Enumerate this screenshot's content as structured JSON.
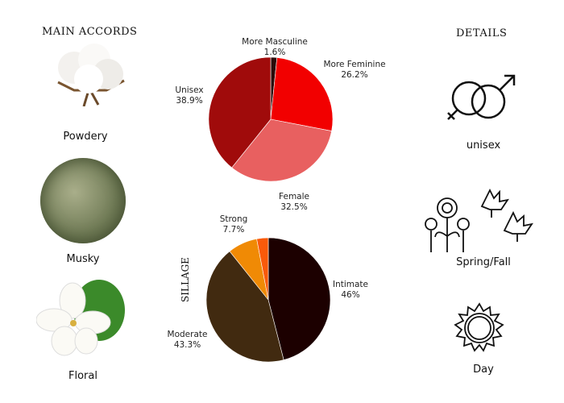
{
  "main_accords": {
    "title": "MAIN ACCORDS",
    "items": [
      {
        "label": "Powdery"
      },
      {
        "label": "Musky"
      },
      {
        "label": "Floral"
      }
    ]
  },
  "details": {
    "title": "DETAILS",
    "gender": "unisex",
    "season": "Spring/Fall",
    "time": "Day"
  },
  "sillage_title": "SILLAGE",
  "chart_data": [
    {
      "type": "pie",
      "start": "top",
      "direction": "clockwise",
      "slices": [
        {
          "label": "More Masculine",
          "value": 1.6,
          "display": "1.6%",
          "color": "#2a0a08"
        },
        {
          "label": "More Feminine",
          "value": 26.2,
          "display": "26.2%",
          "color": "#f20000"
        },
        {
          "label": "Female",
          "value": 32.5,
          "display": "32.5%",
          "color": "#e86060"
        },
        {
          "label": "Unisex",
          "value": 38.9,
          "display": "38.9%",
          "color": "#a00b0b"
        }
      ]
    },
    {
      "type": "pie",
      "start": "top",
      "direction": "clockwise",
      "slices": [
        {
          "label": "Intimate",
          "value": 46,
          "display": "46%",
          "color": "#1c0000"
        },
        {
          "label": "Moderate",
          "value": 43.3,
          "display": "43.3%",
          "color": "#412a10"
        },
        {
          "label": "Strong",
          "value": 7.7,
          "display": "7.7%",
          "color": "#f08a05"
        },
        {
          "label": "",
          "value": 3.0,
          "display": "",
          "color": "#fa5a0a"
        }
      ]
    }
  ]
}
